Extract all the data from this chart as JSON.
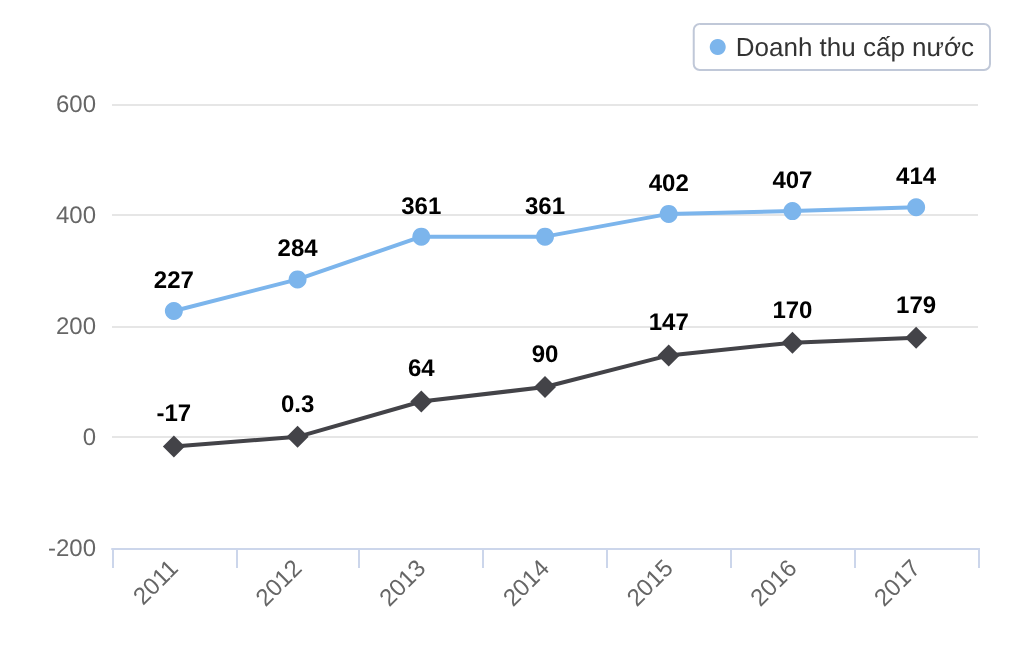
{
  "chart_data": {
    "type": "line",
    "categories": [
      "2011",
      "2012",
      "2013",
      "2014",
      "2015",
      "2016",
      "2017"
    ],
    "series": [
      {
        "name": "Doanh thu cấp nước",
        "color": "#7cb5ec",
        "marker": "circle",
        "values": [
          227,
          284,
          361,
          361,
          402,
          407,
          414
        ]
      },
      {
        "color": "#434348",
        "marker": "diamond",
        "values": [
          -17,
          0.3,
          64,
          90,
          147,
          170,
          179
        ]
      }
    ],
    "ylim": [
      -200,
      600
    ],
    "yticks": [
      -200,
      0,
      200,
      400,
      600
    ],
    "grid": "y",
    "legend": "top right",
    "data_labels": true
  }
}
